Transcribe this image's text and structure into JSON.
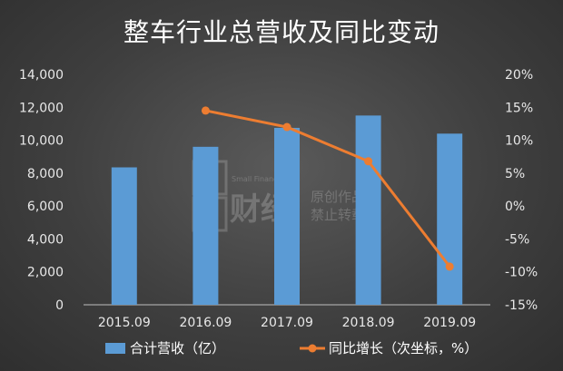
{
  "chart_data": {
    "type": "bar",
    "title": "整车行业总营收及同比变动",
    "categories": [
      "2015.09",
      "2016.09",
      "2017.09",
      "2018.09",
      "2019.09"
    ],
    "series": [
      {
        "name": "合计营收（亿）",
        "type": "bar",
        "axis": "left",
        "values": [
          8350,
          9600,
          10750,
          11500,
          10400
        ],
        "color": "#5b9bd5"
      },
      {
        "name": "同比增长（次坐标，%）",
        "type": "line",
        "axis": "right",
        "values": [
          null,
          14.5,
          12,
          6.8,
          -9.2
        ],
        "color": "#ed7d31"
      }
    ],
    "ylim": [
      0,
      14000
    ],
    "y_ticks": [
      "0",
      "2,000",
      "4,000",
      "6,000",
      "8,000",
      "10,000",
      "12,000",
      "14,000"
    ],
    "y2lim": [
      -15,
      20
    ],
    "y2_ticks": [
      "-15%",
      "-10%",
      "-5%",
      "0%",
      "5%",
      "10%",
      "15%",
      "20%"
    ],
    "xlabel": "",
    "ylabel": "",
    "grid": false,
    "legend": "bottom"
  },
  "watermark": {
    "text1": "原创作品",
    "text2": "禁止转载",
    "brand": "财经",
    "small": "Small Finance"
  }
}
